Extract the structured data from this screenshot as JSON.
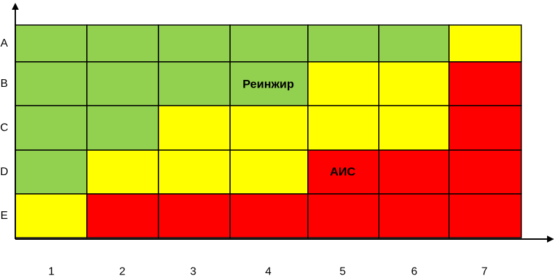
{
  "chart_data": {
    "type": "heatmap",
    "title": "",
    "xlabel": "",
    "ylabel": "",
    "x_categories": [
      "1",
      "2",
      "3",
      "4",
      "5",
      "6",
      "7"
    ],
    "y_categories": [
      "A",
      "B",
      "C",
      "D",
      "E"
    ],
    "colors": {
      "green": "#92d050",
      "yellow": "#ffff00",
      "red": "#ff0000"
    },
    "cells": [
      [
        "green",
        "green",
        "green",
        "green",
        "green",
        "green",
        "yellow"
      ],
      [
        "green",
        "green",
        "green",
        "green",
        "yellow",
        "yellow",
        "red"
      ],
      [
        "green",
        "green",
        "yellow",
        "yellow",
        "yellow",
        "yellow",
        "red"
      ],
      [
        "green",
        "yellow",
        "yellow",
        "yellow",
        "red",
        "red",
        "red"
      ],
      [
        "yellow",
        "red",
        "red",
        "red",
        "red",
        "red",
        "red"
      ]
    ],
    "annotations": [
      {
        "text": "Реинжир",
        "row": "B",
        "column": "4"
      },
      {
        "text": "АИС",
        "row": "D",
        "column": "5"
      }
    ]
  }
}
